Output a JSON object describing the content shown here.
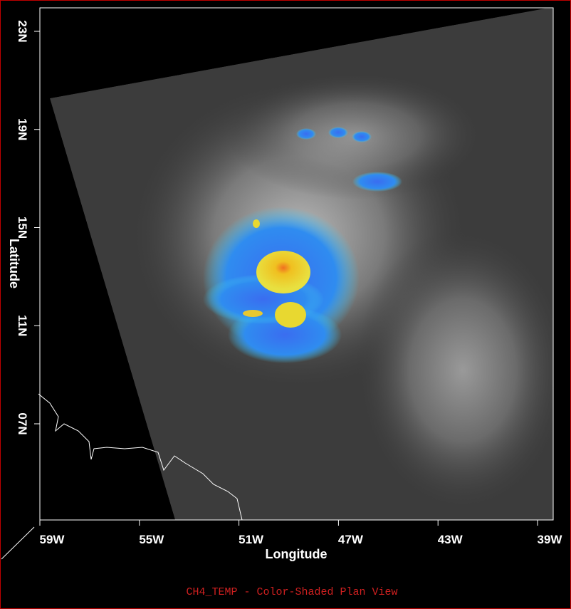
{
  "map": {
    "x_axis": {
      "label": "Longitude",
      "ticks": [
        "59W",
        "55W",
        "51W",
        "47W",
        "43W",
        "39W"
      ]
    },
    "y_axis": {
      "label": "Latitude",
      "ticks": [
        "23N",
        "19N",
        "15N",
        "11N",
        "07N"
      ]
    },
    "caption": "CH4_TEMP - Color-Shaded Plan View"
  }
}
